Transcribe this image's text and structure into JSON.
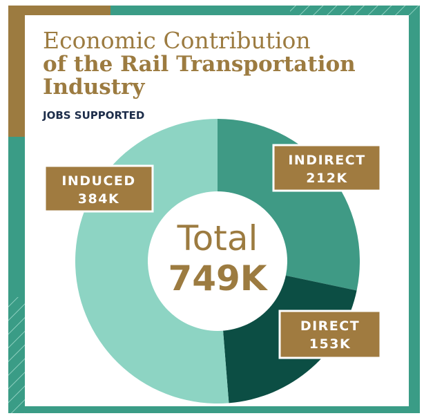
{
  "chart_data": {
    "type": "donut",
    "title_lines": [
      "Economic Contribution",
      "of the Rail Transportation",
      "Industry"
    ],
    "subtitle": "JOBS SUPPORTED",
    "categories": [
      "INDIRECT",
      "DIRECT",
      "INDUCED"
    ],
    "values": [
      212000,
      153000,
      384000
    ],
    "value_labels": [
      "212K",
      "153K",
      "384K"
    ],
    "colors": [
      "#3f9a85",
      "#0c4e44",
      "#8dd4c3"
    ],
    "center_label": "Total",
    "total_label": "749K"
  }
}
